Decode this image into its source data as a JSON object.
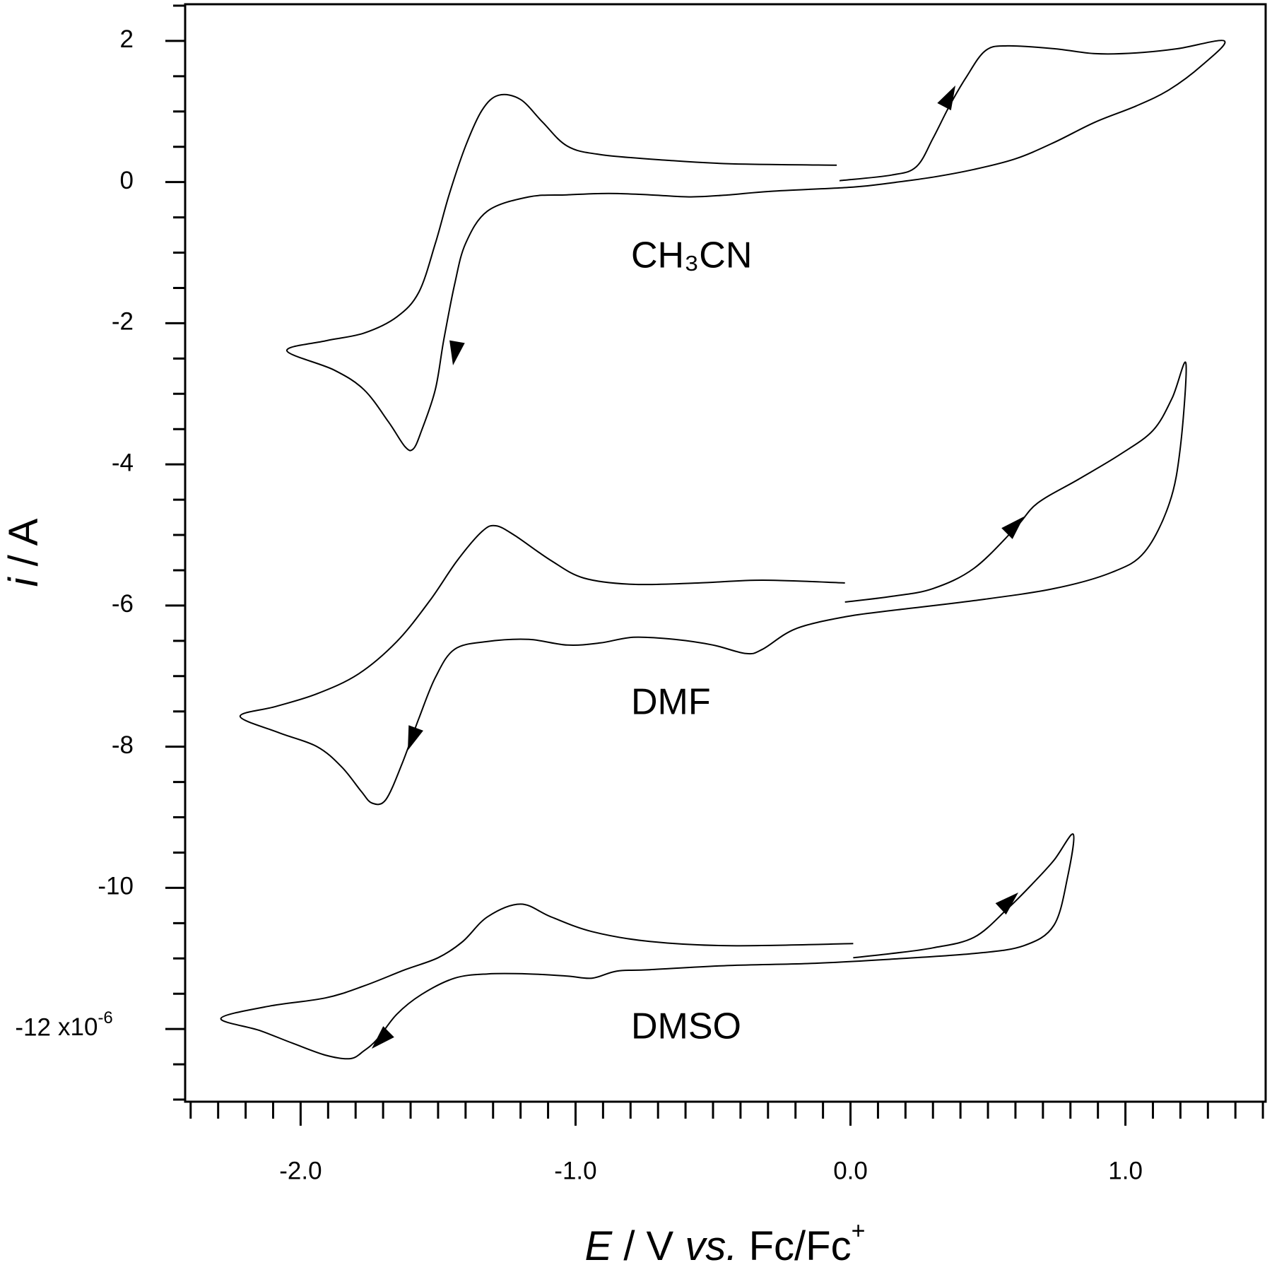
{
  "chart_data": {
    "type": "line",
    "xlabel": [
      "E",
      " / V ",
      "vs.",
      " Fc/Fc",
      "+"
    ],
    "ylabel": [
      "i",
      " / A"
    ],
    "y_multiplier": [
      "x10",
      "-6"
    ],
    "xlim": [
      -2.42,
      1.51
    ],
    "ylim": [
      -13.03,
      2.52
    ],
    "xticks": [
      {
        "value": -2,
        "label": "-2.0"
      },
      {
        "value": -1,
        "label": "-1.0"
      },
      {
        "value": 0,
        "label": "0.0"
      },
      {
        "value": 1,
        "label": "1.0"
      }
    ],
    "xminorticks": [
      -2.4,
      -2.3,
      -2.2,
      -2.1,
      -1.9,
      -1.8,
      -1.7,
      -1.6,
      -1.5,
      -1.4,
      -1.3,
      -1.2,
      -1.1,
      -0.9,
      -0.8,
      -0.7,
      -0.6,
      -0.5,
      -0.4,
      -0.3,
      -0.2,
      -0.1,
      0.1,
      0.2,
      0.3,
      0.4,
      0.5,
      0.6,
      0.7,
      0.8,
      0.9,
      1.1,
      1.2,
      1.3,
      1.4,
      1.5
    ],
    "yticks": [
      2,
      0,
      -2,
      -4,
      -6,
      -8,
      -10,
      -12
    ],
    "yminorticks": [
      2.5,
      1.5,
      1,
      0.5,
      -0.5,
      -1,
      -1.5,
      -2.5,
      -3,
      -3.5,
      -4.5,
      -5,
      -5.5,
      -6.5,
      -7,
      -7.5,
      -8.5,
      -9,
      -9.5,
      -10.5,
      -11,
      -11.5,
      -12.5,
      -13
    ],
    "series": [
      {
        "name": "CH₃CN",
        "color": "#000000",
        "x": [
          -0.04,
          0.15,
          0.24,
          0.3,
          0.36,
          0.42,
          0.49,
          0.57,
          0.74,
          0.89,
          1.04,
          1.19,
          1.36,
          1.28,
          1.16,
          1.04,
          0.89,
          0.74,
          0.6,
          0.45,
          0.3,
          0.15,
          0.01,
          -0.29,
          -0.44,
          -0.58,
          -0.73,
          -0.88,
          -1.03,
          -1.17,
          -1.32,
          -1.4,
          -1.44,
          -1.48,
          -1.51,
          -1.56,
          -1.59,
          -1.62,
          -1.68,
          -1.77,
          -1.88,
          -2.05,
          -1.91,
          -1.77,
          -1.65,
          -1.57,
          -1.51,
          -1.46,
          -1.4,
          -1.34,
          -1.28,
          -1.2,
          -1.12,
          -1.03,
          -0.91,
          -0.67,
          -0.44,
          -0.05
        ],
        "values": [
          0.02,
          0.1,
          0.22,
          0.62,
          1.08,
          1.48,
          1.86,
          1.93,
          1.89,
          1.82,
          1.83,
          1.89,
          2.0,
          1.66,
          1.31,
          1.08,
          0.85,
          0.56,
          0.33,
          0.18,
          0.07,
          -0.01,
          -0.07,
          -0.13,
          -0.18,
          -0.21,
          -0.18,
          -0.16,
          -0.18,
          -0.21,
          -0.41,
          -0.87,
          -1.45,
          -2.25,
          -2.94,
          -3.52,
          -3.78,
          -3.75,
          -3.4,
          -2.94,
          -2.66,
          -2.39,
          -2.25,
          -2.14,
          -1.91,
          -1.56,
          -0.87,
          -0.18,
          0.51,
          1.02,
          1.23,
          1.17,
          0.85,
          0.51,
          0.39,
          0.31,
          0.26,
          0.24
        ]
      },
      {
        "name": "DMF",
        "color": "#000000",
        "x": [
          -0.02,
          0.15,
          0.3,
          0.45,
          0.6,
          0.68,
          0.83,
          0.98,
          1.1,
          1.17,
          1.22,
          1.2,
          1.16,
          1.07,
          0.95,
          0.74,
          0.45,
          0.15,
          -0.02,
          -0.2,
          -0.32,
          -0.38,
          -0.5,
          -0.64,
          -0.79,
          -0.91,
          -1.03,
          -1.17,
          -1.32,
          -1.44,
          -1.51,
          -1.57,
          -1.63,
          -1.69,
          -1.74,
          -1.78,
          -1.85,
          -1.94,
          -2.08,
          -2.22,
          -2.09,
          -1.94,
          -1.79,
          -1.65,
          -1.53,
          -1.43,
          -1.34,
          -1.29,
          -1.22,
          -1.09,
          -0.97,
          -0.79,
          -0.55,
          -0.32,
          -0.02
        ],
        "values": [
          -5.95,
          -5.87,
          -5.76,
          -5.47,
          -4.9,
          -4.55,
          -4.21,
          -3.86,
          -3.52,
          -3.06,
          -2.57,
          -3.75,
          -4.55,
          -5.24,
          -5.53,
          -5.76,
          -5.93,
          -6.07,
          -6.16,
          -6.33,
          -6.62,
          -6.68,
          -6.56,
          -6.48,
          -6.45,
          -6.53,
          -6.56,
          -6.48,
          -6.51,
          -6.62,
          -7.02,
          -7.6,
          -8.23,
          -8.75,
          -8.8,
          -8.63,
          -8.29,
          -8.0,
          -7.8,
          -7.57,
          -7.43,
          -7.25,
          -6.97,
          -6.51,
          -5.93,
          -5.36,
          -4.95,
          -4.87,
          -5.01,
          -5.36,
          -5.61,
          -5.7,
          -5.68,
          -5.64,
          -5.68
        ]
      },
      {
        "name": "DMSO",
        "color": "#000000",
        "x": [
          0.01,
          0.15,
          0.3,
          0.45,
          0.57,
          0.66,
          0.74,
          0.81,
          0.79,
          0.74,
          0.63,
          0.45,
          0.15,
          -0.14,
          -0.44,
          -0.73,
          -0.85,
          -0.94,
          -1.03,
          -1.17,
          -1.32,
          -1.44,
          -1.56,
          -1.65,
          -1.72,
          -1.77,
          -1.82,
          -1.91,
          -2.03,
          -2.15,
          -2.29,
          -2.12,
          -1.91,
          -1.77,
          -1.62,
          -1.5,
          -1.41,
          -1.32,
          -1.2,
          -1.09,
          -0.94,
          -0.73,
          -0.44,
          0.01
        ],
        "values": [
          -10.99,
          -10.93,
          -10.85,
          -10.7,
          -10.3,
          -9.95,
          -9.61,
          -9.24,
          -9.84,
          -10.53,
          -10.82,
          -10.93,
          -11.01,
          -11.07,
          -11.1,
          -11.16,
          -11.18,
          -11.28,
          -11.25,
          -11.22,
          -11.22,
          -11.28,
          -11.51,
          -11.79,
          -12.14,
          -12.31,
          -12.42,
          -12.37,
          -12.2,
          -12.02,
          -11.85,
          -11.68,
          -11.56,
          -11.39,
          -11.16,
          -10.99,
          -10.76,
          -10.41,
          -10.23,
          -10.41,
          -10.62,
          -10.76,
          -10.82,
          -10.79
        ]
      }
    ]
  }
}
